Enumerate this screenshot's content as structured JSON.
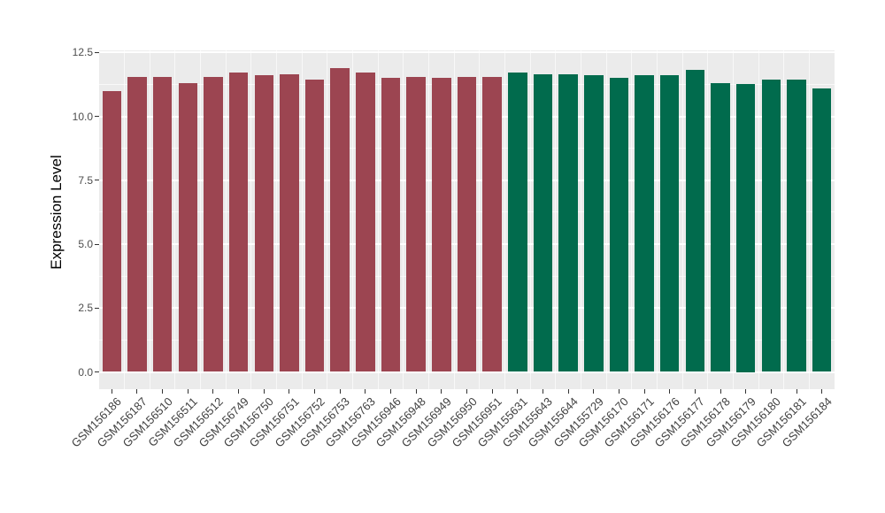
{
  "chart_data": {
    "type": "bar",
    "title": "",
    "xlabel": "",
    "ylabel": "Expression Level",
    "ylim": [
      0,
      12.5
    ],
    "yticks": [
      0,
      2.5,
      5,
      7.5,
      10,
      12.5
    ],
    "ytick_labels": [
      "0.0",
      "2.5",
      "5.0",
      "7.5",
      "10.0",
      "12.5"
    ],
    "minor_yticks": [
      1.25,
      3.75,
      6.25,
      8.75,
      11.25
    ],
    "grid": true,
    "legend_position": "none",
    "panel_background": "#EBEBEB",
    "grid_color": "#FFFFFF",
    "group_colors": {
      "maroon": "#9C4551",
      "green": "#016B4D"
    },
    "categories": [
      "GSM156186",
      "GSM156187",
      "GSM156510",
      "GSM156511",
      "GSM156512",
      "GSM156749",
      "GSM156750",
      "GSM156751",
      "GSM156752",
      "GSM156753",
      "GSM156763",
      "GSM156946",
      "GSM156948",
      "GSM156949",
      "GSM156950",
      "GSM156951",
      "GSM155631",
      "GSM155643",
      "GSM155644",
      "GSM155729",
      "GSM156170",
      "GSM156171",
      "GSM156176",
      "GSM156177",
      "GSM156178",
      "GSM156179",
      "GSM156180",
      "GSM156181",
      "GSM156184"
    ],
    "values": [
      11.0,
      11.55,
      11.55,
      11.3,
      11.55,
      11.7,
      11.6,
      11.65,
      11.45,
      11.9,
      11.7,
      11.5,
      11.55,
      11.5,
      11.55,
      11.55,
      11.7,
      11.65,
      11.65,
      11.6,
      11.5,
      11.6,
      11.6,
      11.8,
      11.3,
      11.25,
      11.45,
      11.45,
      11.1
    ],
    "groups": [
      "maroon",
      "maroon",
      "maroon",
      "maroon",
      "maroon",
      "maroon",
      "maroon",
      "maroon",
      "maroon",
      "maroon",
      "maroon",
      "maroon",
      "maroon",
      "maroon",
      "maroon",
      "maroon",
      "green",
      "green",
      "green",
      "green",
      "green",
      "green",
      "green",
      "green",
      "green",
      "green",
      "green",
      "green",
      "green"
    ]
  }
}
